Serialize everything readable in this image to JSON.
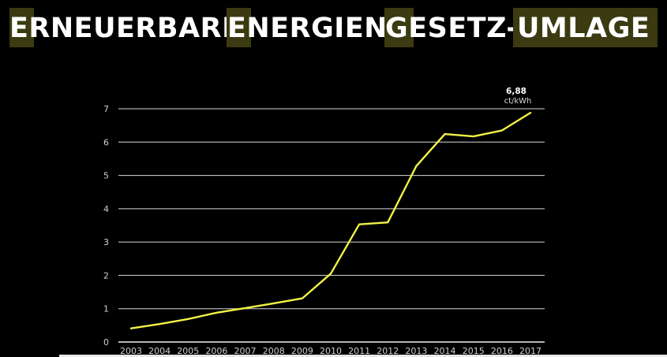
{
  "title": {
    "segments": [
      {
        "highlight": "E",
        "rest": "RNEUERBARE-"
      },
      {
        "highlight": "E",
        "rest": "NERGIEN-"
      },
      {
        "highlight": "G",
        "rest": "ESETZ-"
      },
      {
        "highlight": "UMLAGE",
        "rest": ""
      }
    ]
  },
  "colors": {
    "background": "#000000",
    "line": "#f2f247",
    "grid": "#ffffff",
    "highlight_box": "#3b3a10"
  },
  "chart_data": {
    "type": "line",
    "x": [
      "2003",
      "2004",
      "2005",
      "2006",
      "2007",
      "2008",
      "2009",
      "2010",
      "2011",
      "2012",
      "2013",
      "2014",
      "2015",
      "2016",
      "2017"
    ],
    "series": [
      {
        "values": [
          0.41,
          0.54,
          0.69,
          0.88,
          1.02,
          1.16,
          1.31,
          2.05,
          3.53,
          3.59,
          5.28,
          6.24,
          6.17,
          6.35,
          6.88
        ]
      }
    ],
    "ylim": [
      0,
      7
    ],
    "yticks": [
      "0",
      "1",
      "2",
      "3",
      "4",
      "5",
      "6",
      "7"
    ],
    "grid": true,
    "annotation": {
      "value": "6,88",
      "unit": "ct/kWh"
    }
  }
}
